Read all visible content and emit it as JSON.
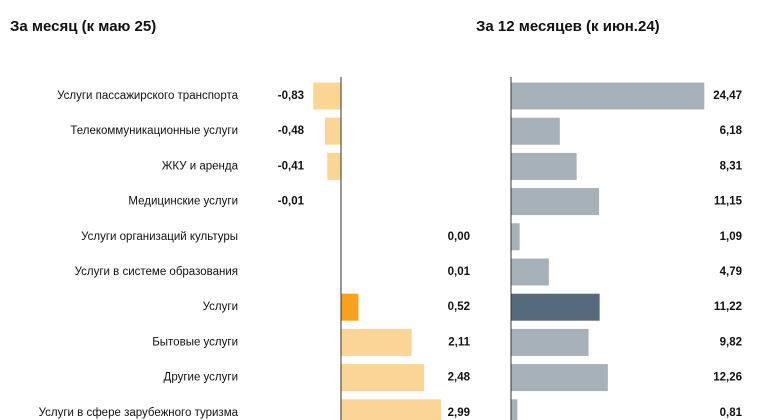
{
  "colors": {
    "month_bar": "#fad595",
    "month_bar_highlight": "#f7a11e",
    "year_bar": "#a7b1ba",
    "year_bar_highlight": "#566a7e",
    "axis": "#333333"
  },
  "chart_data": [
    {
      "type": "bar",
      "orientation": "horizontal",
      "title": "За месяц (к маю 25)",
      "categories": [
        "Услуги пассажирского транспорта",
        "Телекоммуникационные услуги",
        "ЖКУ и аренда",
        "Медицинские услуги",
        "Услуги организаций культуры",
        "Услуги в системе образования",
        "Услуги",
        "Бытовые услуги",
        "Другие услуги",
        "Услуги в сфере зарубежного туризма"
      ],
      "values": [
        -0.83,
        -0.48,
        -0.41,
        -0.01,
        0.0,
        0.01,
        0.52,
        2.11,
        2.48,
        2.99
      ],
      "value_labels": [
        "-0,83",
        "-0,48",
        "-0,41",
        "-0,01",
        "0,00",
        "0,01",
        "0,52",
        "2,11",
        "2,48",
        "2,99"
      ],
      "highlight_category": "Услуги",
      "xlim": [
        -0.9,
        3.1
      ]
    },
    {
      "type": "bar",
      "orientation": "horizontal",
      "title": "За 12 месяцев (к июн.24)",
      "categories": [
        "Услуги пассажирского транспорта",
        "Телекоммуникационные услуги",
        "ЖКУ и аренда",
        "Медицинские услуги",
        "Услуги организаций культуры",
        "Услуги в системе образования",
        "Услуги",
        "Бытовые услуги",
        "Другие услуги",
        "Услуги в сфере зарубежного туризма"
      ],
      "values": [
        24.47,
        6.18,
        8.31,
        11.15,
        1.09,
        4.79,
        11.22,
        9.82,
        12.26,
        0.81
      ],
      "value_labels": [
        "24,47",
        "6,18",
        "8,31",
        "11,15",
        "1,09",
        "4,79",
        "11,22",
        "9,82",
        "12,26",
        "0,81"
      ],
      "highlight_category": "Услуги",
      "xlim": [
        0,
        25
      ]
    }
  ]
}
